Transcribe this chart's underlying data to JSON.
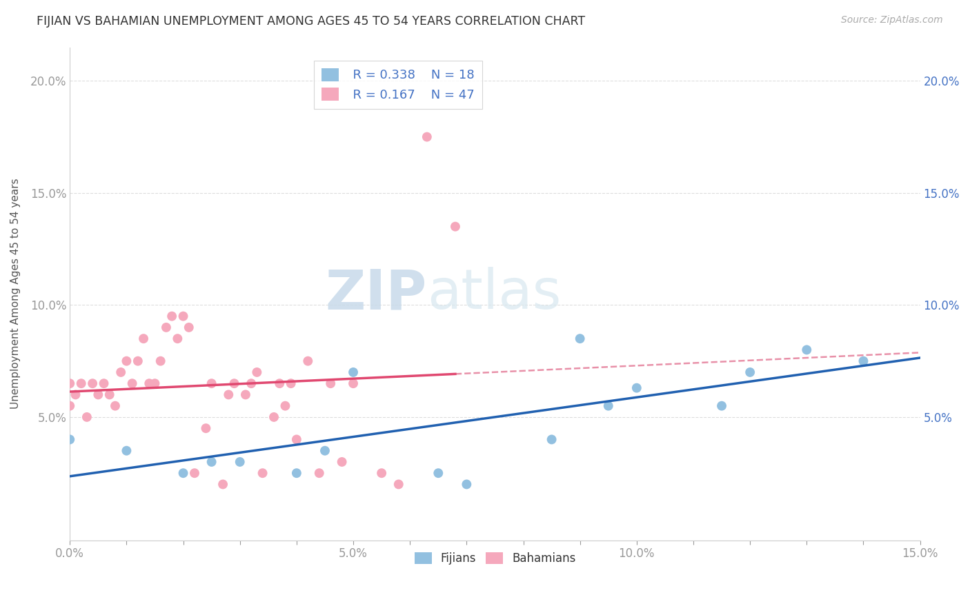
{
  "title": "FIJIAN VS BAHAMIAN UNEMPLOYMENT AMONG AGES 45 TO 54 YEARS CORRELATION CHART",
  "source": "Source: ZipAtlas.com",
  "ylabel": "Unemployment Among Ages 45 to 54 years",
  "xlim": [
    0.0,
    0.15
  ],
  "ylim": [
    -0.005,
    0.215
  ],
  "ytick_positions": [
    0.05,
    0.1,
    0.15,
    0.2
  ],
  "ytick_labels": [
    "5.0%",
    "10.0%",
    "15.0%",
    "20.0%"
  ],
  "fijian_color": "#92c0e0",
  "bahamian_color": "#f5a8bc",
  "fijian_line_color": "#2060b0",
  "bahamian_line_color": "#e04870",
  "bahamian_line_dashed_color": "#e890a8",
  "watermark_zip": "ZIP",
  "watermark_atlas": "atlas",
  "legend_R_fijian": "R = 0.338",
  "legend_N_fijian": "N = 18",
  "legend_R_bahamian": "R = 0.167",
  "legend_N_bahamian": "N = 47",
  "fijian_x": [
    0.0,
    0.01,
    0.02,
    0.025,
    0.03,
    0.04,
    0.045,
    0.05,
    0.065,
    0.07,
    0.085,
    0.09,
    0.095,
    0.1,
    0.115,
    0.12,
    0.13,
    0.14
  ],
  "fijian_y": [
    0.04,
    0.035,
    0.025,
    0.03,
    0.03,
    0.025,
    0.035,
    0.07,
    0.025,
    0.02,
    0.04,
    0.085,
    0.055,
    0.063,
    0.055,
    0.07,
    0.08,
    0.075
  ],
  "bahamian_x": [
    0.0,
    0.0,
    0.001,
    0.002,
    0.003,
    0.004,
    0.005,
    0.006,
    0.007,
    0.008,
    0.009,
    0.01,
    0.011,
    0.012,
    0.013,
    0.014,
    0.015,
    0.016,
    0.017,
    0.018,
    0.019,
    0.02,
    0.021,
    0.022,
    0.024,
    0.025,
    0.027,
    0.028,
    0.029,
    0.031,
    0.032,
    0.033,
    0.034,
    0.036,
    0.037,
    0.038,
    0.039,
    0.04,
    0.042,
    0.044,
    0.046,
    0.048,
    0.05,
    0.055,
    0.058,
    0.063,
    0.068
  ],
  "bahamian_y": [
    0.065,
    0.055,
    0.06,
    0.065,
    0.05,
    0.065,
    0.06,
    0.065,
    0.06,
    0.055,
    0.07,
    0.075,
    0.065,
    0.075,
    0.085,
    0.065,
    0.065,
    0.075,
    0.09,
    0.095,
    0.085,
    0.095,
    0.09,
    0.025,
    0.045,
    0.065,
    0.02,
    0.06,
    0.065,
    0.06,
    0.065,
    0.07,
    0.025,
    0.05,
    0.065,
    0.055,
    0.065,
    0.04,
    0.075,
    0.025,
    0.065,
    0.03,
    0.065,
    0.025,
    0.02,
    0.175,
    0.135
  ],
  "background_color": "#ffffff",
  "grid_color": "#dddddd"
}
